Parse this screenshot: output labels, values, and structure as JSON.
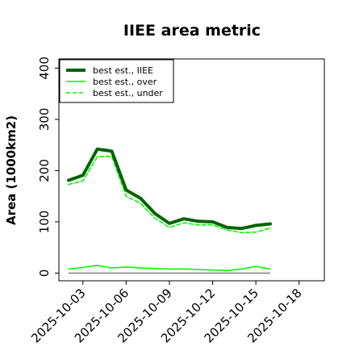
{
  "chart_data": {
    "type": "line",
    "title": "IIEE area metric",
    "xlabel": "",
    "ylabel": "Area (1000km2)",
    "x": [
      "2025-10-02",
      "2025-10-03",
      "2025-10-04",
      "2025-10-05",
      "2025-10-06",
      "2025-10-07",
      "2025-10-08",
      "2025-10-09",
      "2025-10-10",
      "2025-10-11",
      "2025-10-12",
      "2025-10-13",
      "2025-10-14",
      "2025-10-15",
      "2025-10-16"
    ],
    "xticks": [
      "2025-10-03",
      "2025-10-06",
      "2025-10-09",
      "2025-10-12",
      "2025-10-15",
      "2025-10-18"
    ],
    "xlim": [
      "2025-10-01T08:00",
      "2025-10-19T18:00"
    ],
    "yticks": [
      0,
      100,
      200,
      300,
      400
    ],
    "ylim": [
      -15,
      418
    ],
    "grid": false,
    "legend_position": "top-left",
    "series": [
      {
        "name": "best est., IIEE",
        "color": "#006400",
        "style": "solid-thick",
        "values": [
          181,
          191,
          242,
          238,
          162,
          146,
          116,
          97,
          106,
          101,
          100,
          89,
          87,
          93,
          96
        ]
      },
      {
        "name": "best est., over",
        "color": "#00ff00",
        "style": "solid-thin",
        "values": [
          8,
          11,
          15,
          10,
          12,
          10,
          9,
          8,
          8,
          7,
          6,
          5,
          8,
          13,
          8
        ]
      },
      {
        "name": "best est., under",
        "color": "#00ff00",
        "style": "dashed",
        "values": [
          173,
          180,
          227,
          228,
          150,
          136,
          107,
          89,
          98,
          94,
          94,
          84,
          79,
          80,
          88
        ]
      }
    ],
    "reference_line": {
      "color": "#808080",
      "value": 0
    }
  }
}
